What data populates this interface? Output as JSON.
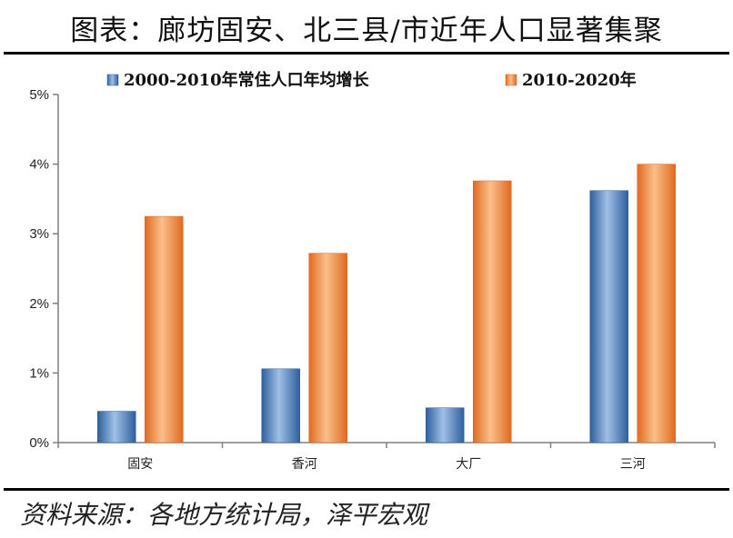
{
  "header": {
    "title": "图表：廊坊固安、北三县/市近年人口显著集聚"
  },
  "footer": {
    "source": "资料来源：各地方统计局，泽平宏观"
  },
  "colors": {
    "series1": "#4f7fc0",
    "series2": "#f08a3c",
    "axis": "#7f7f7f"
  },
  "chart_data": {
    "type": "bar",
    "categories": [
      "固安",
      "香河",
      "大厂",
      "三河"
    ],
    "series": [
      {
        "name": "2000-2010年常住人口年均增长",
        "values": [
          0.45,
          1.06,
          0.5,
          3.62
        ]
      },
      {
        "name": "2010-2020年",
        "values": [
          3.25,
          2.72,
          3.76,
          4.0
        ]
      }
    ],
    "ylim": [
      0,
      5
    ],
    "yticks": [
      0,
      1,
      2,
      3,
      4,
      5
    ],
    "ytick_labels": [
      "0%",
      "1%",
      "2%",
      "3%",
      "4%",
      "5%"
    ],
    "grid": false,
    "legend_position": "top"
  }
}
